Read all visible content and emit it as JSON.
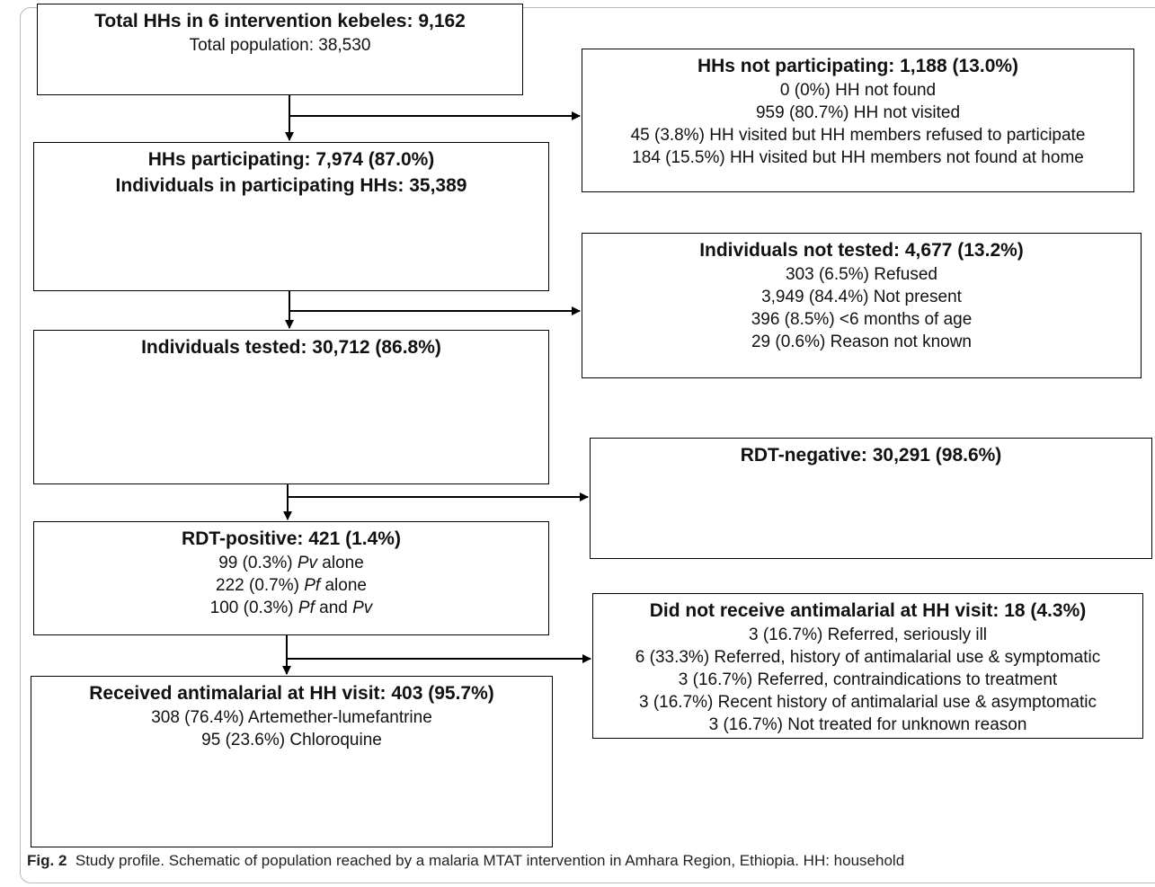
{
  "boxes": {
    "total": {
      "title": "Total HHs in 6 intervention kebeles: 9,162",
      "lines": [
        "Total population: 38,530"
      ]
    },
    "not_participating": {
      "title": "HHs not participating: 1,188 (13.0%)",
      "lines": [
        "0 (0%) HH not found",
        "959 (80.7%) HH not visited",
        "45 (3.8%) HH visited but HH members refused to participate",
        "184 (15.5%) HH visited but HH members not found at home"
      ]
    },
    "participating": {
      "title": "HHs participating: 7,974 (87.0%)",
      "title2": "Individuals in participating HHs: 35,389"
    },
    "not_tested": {
      "title": "Individuals not tested: 4,677 (13.2%)",
      "lines": [
        "303 (6.5%) Refused",
        "3,949 (84.4%) Not present",
        "396 (8.5%) <6 months of age",
        "29 (0.6%) Reason not known"
      ]
    },
    "tested": {
      "title": "Individuals tested: 30,712 (86.8%)"
    },
    "rdt_negative": {
      "title": "RDT-negative: 30,291 (98.6%)"
    },
    "rdt_positive": {
      "title": "RDT-positive: 421 (1.4%)",
      "lines": [
        {
          "pre": "99 (0.3%) ",
          "sp1": "Pv",
          "mid": " alone",
          "sp2": "",
          "post": ""
        },
        {
          "pre": "222 (0.7%) ",
          "sp1": "Pf",
          "mid": " alone",
          "sp2": "",
          "post": ""
        },
        {
          "pre": "100 (0.3%) ",
          "sp1": "Pf",
          "mid": " and ",
          "sp2": "Pv",
          "post": ""
        }
      ]
    },
    "no_antimalarial": {
      "title": "Did not receive antimalarial at HH visit: 18 (4.3%)",
      "lines": [
        "3 (16.7%) Referred, seriously ill",
        "6 (33.3%) Referred, history of antimalarial use & symptomatic",
        "3 (16.7%) Referred, contraindications to treatment",
        "3 (16.7%) Recent history of antimalarial use & asymptomatic",
        "3 (16.7%) Not treated for unknown reason"
      ]
    },
    "received": {
      "title": "Received antimalarial at HH visit: 403 (95.7%)",
      "lines": [
        "308 (76.4%) Artemether-lumefantrine",
        "95 (23.6%) Chloroquine"
      ]
    }
  },
  "caption": {
    "label": "Fig. 2",
    "text": "Study profile. Schematic of population reached by a malaria MTAT intervention in Amhara Region, Ethiopia. HH: household"
  }
}
